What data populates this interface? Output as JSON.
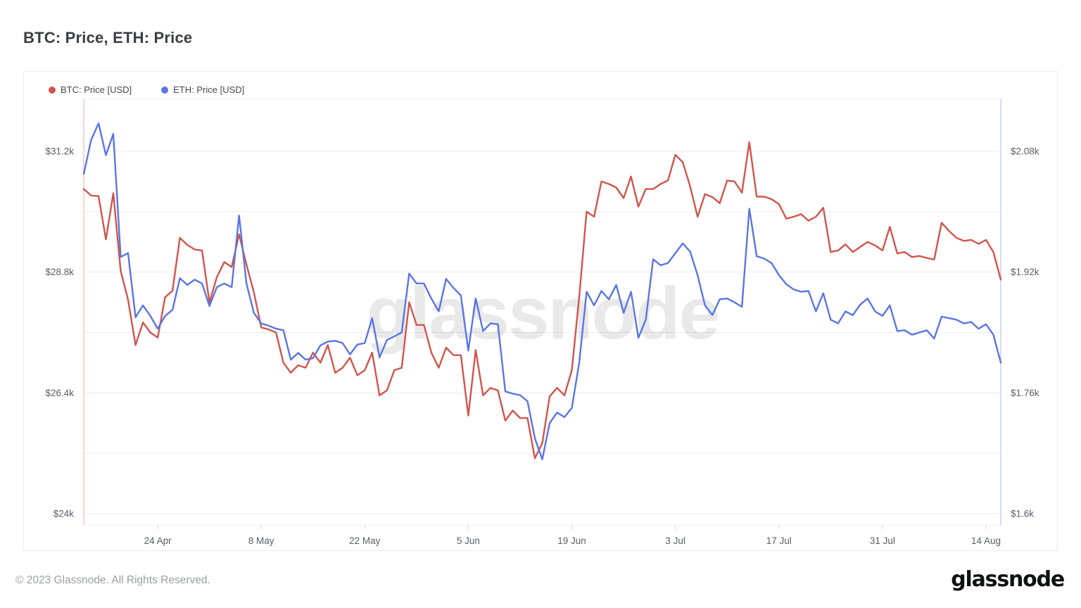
{
  "page": {
    "title": "BTC: Price, ETH: Price",
    "watermark": "glassnode",
    "footer": {
      "copyright": "© 2023 Glassnode. All Rights Reserved.",
      "brand": "glassnode"
    }
  },
  "legend": [
    {
      "label": "BTC: Price [USD]",
      "color": "#d2544c"
    },
    {
      "label": "ETH: Price [USD]",
      "color": "#5a75e6"
    }
  ],
  "colors": {
    "btc_line": "#d2544c",
    "eth_line": "#5a75e6",
    "left_axis_line": "#f2c4c0",
    "right_axis_line": "#c3cdf2",
    "gridline": "#ececec",
    "plot_edge": "#f0f0f2",
    "axis_text": "#585f68",
    "tick_mark": "#d6d6d6",
    "watermark": "#000000"
  },
  "chart_data": {
    "type": "line",
    "title": "BTC: Price, ETH: Price",
    "x_domain": [
      "2023-04-14",
      "2023-08-16"
    ],
    "frequency": "daily",
    "n_points": 125,
    "grid": true,
    "legend_position": "top-left",
    "x_ticks": [
      {
        "label": "24 Apr",
        "i": 10
      },
      {
        "label": "8 May",
        "i": 24
      },
      {
        "label": "22 May",
        "i": 38
      },
      {
        "label": "5 Jun",
        "i": 52
      },
      {
        "label": "19 Jun",
        "i": 66
      },
      {
        "label": "3 Jul",
        "i": 80
      },
      {
        "label": "17 Jul",
        "i": 94
      },
      {
        "label": "31 Jul",
        "i": 108
      },
      {
        "label": "14 Aug",
        "i": 122
      }
    ],
    "left_axis": {
      "title": "BTC price, thousand USD",
      "ticks": [
        {
          "value": 31.2,
          "label": "$31.2k"
        },
        {
          "value": 28.8,
          "label": "$28.8k"
        },
        {
          "value": 26.4,
          "label": "$26.4k"
        },
        {
          "value": 24.0,
          "label": "$24k"
        }
      ],
      "gridline_values": [
        31.2,
        30.0,
        28.8,
        27.6,
        26.4,
        25.2,
        24.0
      ],
      "range_shown": [
        23.8,
        32.2
      ]
    },
    "right_axis": {
      "title": "ETH price, thousand USD",
      "ticks": [
        {
          "value": 2.08,
          "label": "$2.08k"
        },
        {
          "value": 1.92,
          "label": "$1.92k"
        },
        {
          "value": 1.76,
          "label": "$1.76k"
        },
        {
          "value": 1.6,
          "label": "$1.6k"
        }
      ],
      "range_shown": [
        1.59,
        2.15
      ]
    },
    "series": [
      {
        "name": "BTC: Price [USD]",
        "axis": "left",
        "unit": "kUSD",
        "color": "#d2544c",
        "values": [
          30.45,
          30.32,
          30.31,
          29.45,
          30.37,
          28.82,
          28.25,
          27.35,
          27.8,
          27.6,
          27.5,
          28.3,
          28.43,
          29.48,
          29.34,
          29.25,
          29.23,
          28.2,
          28.7,
          29.0,
          28.9,
          29.55,
          28.95,
          28.4,
          27.7,
          27.66,
          27.6,
          27.0,
          26.8,
          26.95,
          26.9,
          27.2,
          27.0,
          27.35,
          26.8,
          26.9,
          27.1,
          26.75,
          26.85,
          27.2,
          26.35,
          26.45,
          26.85,
          26.9,
          28.2,
          27.75,
          27.75,
          27.2,
          26.9,
          27.3,
          27.15,
          27.15,
          25.95,
          27.25,
          26.35,
          26.5,
          26.45,
          25.85,
          26.05,
          25.9,
          25.9,
          25.1,
          25.4,
          26.33,
          26.5,
          26.35,
          26.85,
          28.3,
          30.0,
          29.9,
          30.6,
          30.55,
          30.48,
          30.27,
          30.7,
          30.1,
          30.45,
          30.45,
          30.55,
          30.62,
          31.13,
          30.98,
          30.5,
          29.9,
          30.35,
          30.29,
          30.17,
          30.62,
          30.6,
          30.38,
          31.38,
          30.3,
          30.3,
          30.25,
          30.15,
          29.86,
          29.9,
          29.95,
          29.82,
          29.9,
          30.08,
          29.2,
          29.23,
          29.35,
          29.2,
          29.3,
          29.4,
          29.33,
          29.23,
          29.7,
          29.17,
          29.2,
          29.1,
          29.12,
          29.08,
          29.05,
          29.78,
          29.62,
          29.48,
          29.42,
          29.44,
          29.36,
          29.44,
          29.2,
          28.65
        ]
      },
      {
        "name": "ETH: Price [USD]",
        "axis": "right",
        "unit": "kUSD",
        "color": "#5a75e6",
        "values": [
          2.05,
          2.095,
          2.117,
          2.075,
          2.103,
          1.94,
          1.945,
          1.86,
          1.876,
          1.862,
          1.845,
          1.862,
          1.87,
          1.912,
          1.903,
          1.91,
          1.905,
          1.875,
          1.9,
          1.905,
          1.9,
          1.995,
          1.905,
          1.866,
          1.852,
          1.849,
          1.845,
          1.843,
          1.804,
          1.813,
          1.804,
          1.806,
          1.823,
          1.828,
          1.829,
          1.826,
          1.811,
          1.824,
          1.826,
          1.859,
          1.807,
          1.83,
          1.835,
          1.84,
          1.918,
          1.905,
          1.905,
          1.885,
          1.868,
          1.911,
          1.899,
          1.889,
          1.816,
          1.885,
          1.842,
          1.852,
          1.851,
          1.762,
          1.759,
          1.757,
          1.749,
          1.7,
          1.672,
          1.72,
          1.734,
          1.728,
          1.74,
          1.8,
          1.894,
          1.876,
          1.895,
          1.884,
          1.903,
          1.866,
          1.894,
          1.833,
          1.857,
          1.937,
          1.929,
          1.932,
          1.945,
          1.958,
          1.947,
          1.916,
          1.876,
          1.863,
          1.884,
          1.885,
          1.88,
          1.874,
          2.004,
          1.941,
          1.938,
          1.932,
          1.916,
          1.904,
          1.897,
          1.894,
          1.895,
          1.868,
          1.892,
          1.857,
          1.852,
          1.868,
          1.863,
          1.877,
          1.885,
          1.868,
          1.862,
          1.876,
          1.842,
          1.843,
          1.837,
          1.84,
          1.843,
          1.832,
          1.861,
          1.859,
          1.857,
          1.852,
          1.854,
          1.845,
          1.851,
          1.837,
          1.8
        ]
      }
    ]
  }
}
